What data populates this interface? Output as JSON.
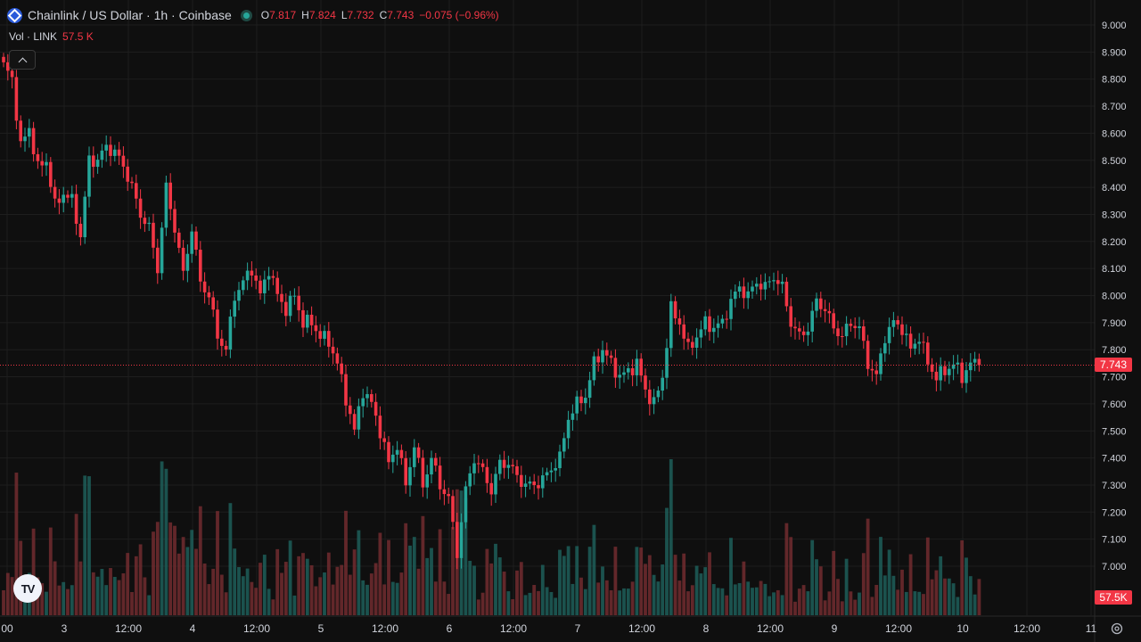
{
  "header": {
    "title": "Chainlink / US Dollar · 1h · Coinbase",
    "ohlc": [
      {
        "label": "O",
        "value": "7.817"
      },
      {
        "label": "H",
        "value": "7.824"
      },
      {
        "label": "L",
        "value": "7.732"
      },
      {
        "label": "C",
        "value": "7.743"
      }
    ],
    "change": "−0.075 (−0.96%)"
  },
  "volume_legend": {
    "label": "Vol · LINK",
    "value": "57.5 K"
  },
  "price_badge": "7.743",
  "volume_badge": "57.5K",
  "logo_text": "TV",
  "colors": {
    "up": "#26a69a",
    "down": "#f23645",
    "background": "#0f0f0f",
    "grid": "#1e1e1e",
    "text": "#d1d4dc"
  },
  "chart_data": {
    "type": "candlestick",
    "interval": "1h",
    "ylim": [
      6.95,
      9.05
    ],
    "y_ticks": [
      "9.000",
      "8.900",
      "8.800",
      "8.700",
      "8.600",
      "8.500",
      "8.400",
      "8.300",
      "8.200",
      "8.100",
      "8.000",
      "7.900",
      "7.800",
      "7.700",
      "7.600",
      "7.500",
      "7.400",
      "7.300",
      "7.200",
      "7.100",
      "7.000"
    ],
    "x_ticks": [
      "00",
      "3",
      "12:00",
      "4",
      "12:00",
      "5",
      "12:00",
      "6",
      "12:00",
      "7",
      "12:00",
      "8",
      "12:00",
      "9",
      "12:00",
      "10",
      "12:00",
      "11"
    ],
    "last_price": 7.743,
    "last_volume": "57.5K",
    "anchors": [
      [
        0,
        8.85
      ],
      [
        2,
        8.8
      ],
      [
        4,
        8.55
      ],
      [
        6,
        8.62
      ],
      [
        8,
        8.47
      ],
      [
        10,
        8.5
      ],
      [
        12,
        8.33
      ],
      [
        14,
        8.38
      ],
      [
        16,
        8.35
      ],
      [
        18,
        8.22
      ],
      [
        20,
        8.5
      ],
      [
        22,
        8.5
      ],
      [
        24,
        8.55
      ],
      [
        26,
        8.53
      ],
      [
        28,
        8.48
      ],
      [
        30,
        8.4
      ],
      [
        32,
        8.3
      ],
      [
        34,
        8.25
      ],
      [
        36,
        8.1
      ],
      [
        38,
        8.4
      ],
      [
        40,
        8.25
      ],
      [
        42,
        8.08
      ],
      [
        44,
        8.25
      ],
      [
        46,
        8.05
      ],
      [
        48,
        8.0
      ],
      [
        50,
        7.85
      ],
      [
        52,
        7.8
      ],
      [
        54,
        8.0
      ],
      [
        56,
        8.05
      ],
      [
        58,
        8.1
      ],
      [
        60,
        8.0
      ],
      [
        62,
        8.1
      ],
      [
        64,
        8.0
      ],
      [
        66,
        7.95
      ],
      [
        68,
        8.0
      ],
      [
        70,
        7.9
      ],
      [
        72,
        7.9
      ],
      [
        74,
        7.85
      ],
      [
        76,
        7.83
      ],
      [
        78,
        7.75
      ],
      [
        80,
        7.62
      ],
      [
        82,
        7.5
      ],
      [
        84,
        7.65
      ],
      [
        86,
        7.6
      ],
      [
        88,
        7.5
      ],
      [
        90,
        7.38
      ],
      [
        92,
        7.45
      ],
      [
        94,
        7.3
      ],
      [
        96,
        7.45
      ],
      [
        98,
        7.3
      ],
      [
        100,
        7.4
      ],
      [
        102,
        7.3
      ],
      [
        104,
        7.25
      ],
      [
        106,
        7.05
      ],
      [
        108,
        7.28
      ],
      [
        110,
        7.4
      ],
      [
        112,
        7.35
      ],
      [
        114,
        7.28
      ],
      [
        116,
        7.38
      ],
      [
        118,
        7.38
      ],
      [
        120,
        7.33
      ],
      [
        122,
        7.3
      ],
      [
        124,
        7.3
      ],
      [
        126,
        7.32
      ],
      [
        128,
        7.36
      ],
      [
        130,
        7.4
      ],
      [
        132,
        7.55
      ],
      [
        134,
        7.6
      ],
      [
        136,
        7.63
      ],
      [
        138,
        7.75
      ],
      [
        140,
        7.8
      ],
      [
        142,
        7.75
      ],
      [
        144,
        7.7
      ],
      [
        146,
        7.72
      ],
      [
        148,
        7.75
      ],
      [
        150,
        7.65
      ],
      [
        152,
        7.6
      ],
      [
        154,
        7.7
      ],
      [
        156,
        7.95
      ],
      [
        158,
        7.9
      ],
      [
        160,
        7.8
      ],
      [
        162,
        7.85
      ],
      [
        164,
        7.9
      ],
      [
        166,
        7.88
      ],
      [
        168,
        7.9
      ],
      [
        170,
        7.98
      ],
      [
        172,
        8.03
      ],
      [
        174,
        8.0
      ],
      [
        176,
        8.05
      ],
      [
        178,
        8.03
      ],
      [
        180,
        8.07
      ],
      [
        182,
        8.03
      ],
      [
        184,
        7.9
      ],
      [
        186,
        7.85
      ],
      [
        188,
        7.88
      ],
      [
        190,
        7.98
      ],
      [
        192,
        7.95
      ],
      [
        194,
        7.88
      ],
      [
        196,
        7.85
      ],
      [
        198,
        7.9
      ],
      [
        200,
        7.88
      ],
      [
        202,
        7.75
      ],
      [
        204,
        7.7
      ],
      [
        206,
        7.85
      ],
      [
        208,
        7.9
      ],
      [
        210,
        7.88
      ],
      [
        212,
        7.8
      ],
      [
        214,
        7.85
      ],
      [
        216,
        7.75
      ],
      [
        218,
        7.7
      ],
      [
        220,
        7.72
      ],
      [
        222,
        7.75
      ],
      [
        224,
        7.7
      ],
      [
        226,
        7.75
      ],
      [
        228,
        7.74
      ]
    ],
    "volume_axis_max": 60
  }
}
